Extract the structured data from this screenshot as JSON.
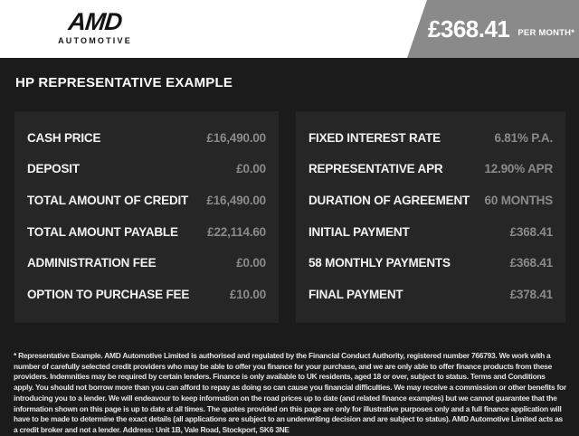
{
  "header": {
    "logo": {
      "brand": "AMD",
      "sub": "AUTOMOTIVE"
    },
    "price_badge": {
      "amount": "£368.41",
      "suffix": "PER MONTH*"
    }
  },
  "section_title": "HP REPRESENTATIVE EXAMPLE",
  "finance": {
    "left": [
      {
        "label": "CASH PRICE",
        "value": "£16,490.00"
      },
      {
        "label": "DEPOSIT",
        "value": "£0.00"
      },
      {
        "label": "TOTAL AMOUNT OF CREDIT",
        "value": "£16,490.00"
      },
      {
        "label": "TOTAL AMOUNT PAYABLE",
        "value": "£22,114.60"
      },
      {
        "label": "ADMINISTRATION FEE",
        "value": "£0.00"
      },
      {
        "label": "OPTION TO PURCHASE FEE",
        "value": "£10.00"
      }
    ],
    "right": [
      {
        "label": "FIXED INTEREST RATE",
        "value": "6.81% P.A."
      },
      {
        "label": "REPRESENTATIVE APR",
        "value": "12.90% APR"
      },
      {
        "label": "DURATION OF AGREEMENT",
        "value": "60 MONTHS"
      },
      {
        "label": "INITIAL PAYMENT",
        "value": "£368.41"
      },
      {
        "label": "58 MONTHLY PAYMENTS",
        "value": "£368.41"
      },
      {
        "label": "FINAL PAYMENT",
        "value": "£378.41"
      }
    ]
  },
  "disclaimer": "* Representative Example. AMD Automotive Limited is authorised and regulated by the Financial Conduct Authority, registered number 766793. We work with a number of carefully selected credit providers who may be able to offer you finance for your purchase, and we are only able to offer finance products from these providers. Indemnities may be required by certain lenders. Finance is only available to UK residents, aged 18 or over, subject to status. Terms and Conditions apply. You should not borrow more than you can afford to repay as doing so can cause you financial difficulties. We may receive a commission or other benefits for introducing you to a lender. We will endeavour to keep information on the road prices up to date (and related finance examples) but we cannot guarantee that the information shown on this page is up to date at all times. The quotes provided on this page are only for illustrative purposes only and a full finance application will have to be made to determine the exact details (all applications are subject to an underwriting decision and are subject to status). AMD Automotive Limited acts as a credit broker and not a lender. Address: Unit 1B, Vale Road, Stockport, SK6 3NE",
  "colors": {
    "header_background": "#ffffff",
    "badge_gray": "#8a8a8a",
    "page_background": "#1b1b1b",
    "panel_background": "#262626",
    "label_text": "#f2f2f2",
    "value_text": "#8a8a8a",
    "disclaimer_text": "#e2e2e2",
    "logo_text": "#141414"
  }
}
